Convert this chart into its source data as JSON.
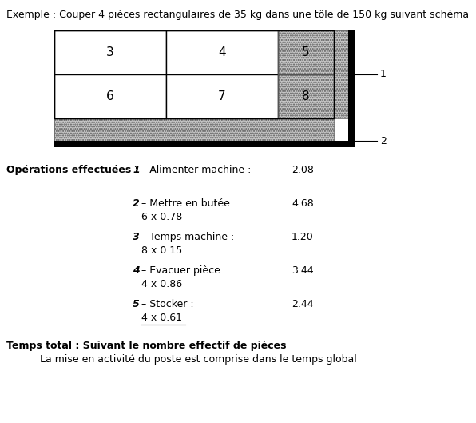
{
  "title": "Exemple : Couper 4 pièces rectangulaires de 35 kg dans une tôle de 150 kg suivant schéma",
  "cell_labels_top": [
    "3",
    "4",
    "5"
  ],
  "cell_labels_bot": [
    "6",
    "7",
    "8"
  ],
  "row_labels": [
    "1",
    "2"
  ],
  "operations_label": "Opérations effectuées :",
  "operations": [
    {
      "number": "1",
      "text": "– Alimenter machine :",
      "value": "2.08",
      "sub": ""
    },
    {
      "number": "2",
      "text": "– Mettre en butée :",
      "value": "4.68",
      "sub": "6 x 0.78"
    },
    {
      "number": "3",
      "text": "– Temps machine :",
      "value": "1.20",
      "sub": "8 x 0.15"
    },
    {
      "number": "4",
      "text": "– Evacuer pièce :",
      "value": "3.44",
      "sub": "4 x 0.86"
    },
    {
      "number": "5",
      "text": "– Stocker :",
      "value": "2.44",
      "sub": "4 x 0.61"
    }
  ],
  "footer_line1": "Temps total : Suivant le nombre effectif de pièces",
  "footer_line2": "La mise en activité du poste est comprise dans le temps global",
  "bg_color": "#ffffff",
  "light_gray": "#c8c8c8",
  "black": "#000000"
}
